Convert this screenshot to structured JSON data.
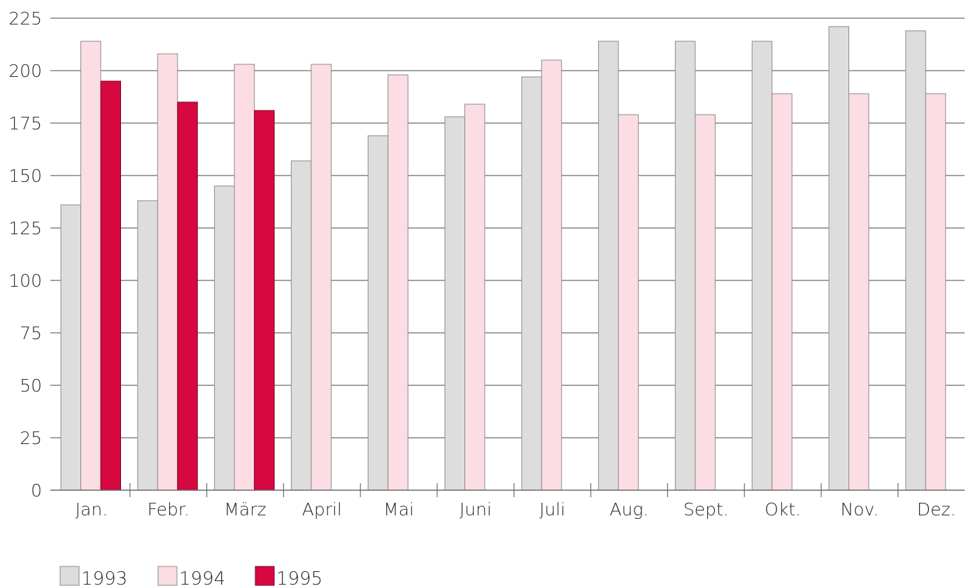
{
  "chart_data": {
    "type": "bar",
    "categories": [
      "Jan.",
      "Febr.",
      "März",
      "April",
      "Mai",
      "Juni",
      "Juli",
      "Aug.",
      "Sept.",
      "Okt.",
      "Nov.",
      "Dez."
    ],
    "series": [
      {
        "name": "1993",
        "color": "#dddddd",
        "values": [
          136,
          138,
          145,
          157,
          169,
          178,
          197,
          214,
          214,
          214,
          221,
          219
        ]
      },
      {
        "name": "1994",
        "color": "#fcdde3",
        "values": [
          214,
          208,
          203,
          203,
          198,
          184,
          205,
          179,
          179,
          189,
          189,
          189
        ]
      },
      {
        "name": "1995",
        "color": "#d6083f",
        "values": [
          195,
          185,
          181,
          null,
          null,
          null,
          null,
          null,
          null,
          null,
          null,
          null
        ]
      }
    ],
    "y_ticks": [
      "0",
      "25",
      "50",
      "75",
      "100",
      "125",
      "150",
      "175",
      "200",
      "225"
    ],
    "ylim": [
      0,
      225
    ],
    "grid": true,
    "legend_position": "bottom-left",
    "title": "",
    "xlabel": "",
    "ylabel": ""
  }
}
